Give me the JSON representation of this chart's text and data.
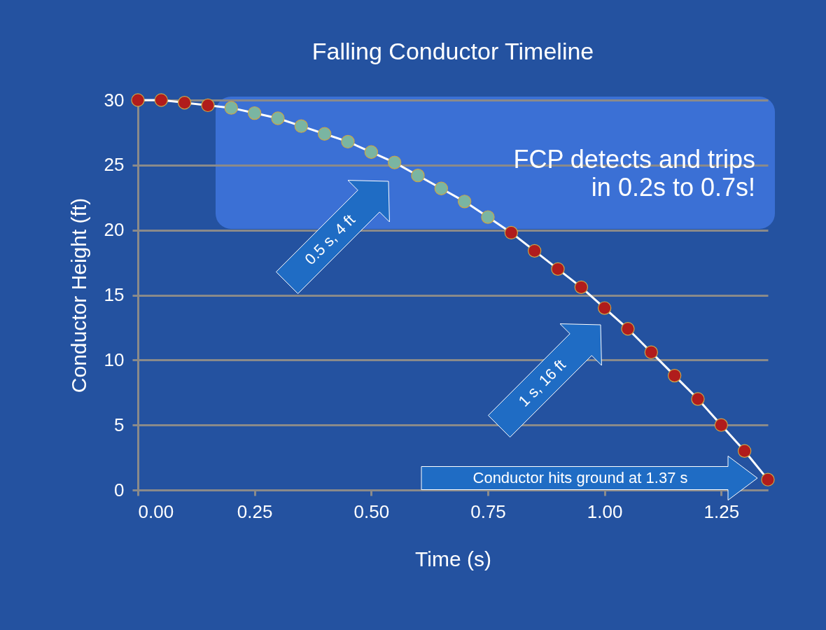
{
  "chart_data": {
    "type": "line",
    "title": "Falling Conductor Timeline",
    "xlabel": "Time (s)",
    "ylabel": "Conductor Height (ft)",
    "x": [
      0,
      0.05,
      0.1,
      0.15,
      0.2,
      0.25,
      0.3,
      0.35,
      0.4,
      0.45,
      0.5,
      0.55,
      0.6,
      0.65,
      0.7,
      0.75,
      0.8,
      0.85,
      0.9,
      0.95,
      1.0,
      1.05,
      1.1,
      1.15,
      1.2,
      1.25,
      1.3,
      1.35
    ],
    "series": [
      {
        "color": "#ffffff",
        "values": [
          30,
          30,
          29.8,
          29.6,
          29.4,
          29,
          28.6,
          28,
          27.4,
          26.8,
          26,
          25.2,
          24.2,
          23.2,
          22.2,
          21,
          19.8,
          18.4,
          17,
          15.6,
          14,
          12.4,
          10.6,
          8.8,
          7,
          5,
          3,
          0.8
        ],
        "colors": [
          "#b01c1c",
          "#b01c1c",
          "#b01c1c",
          "#b01c1c",
          "#7ab5a2",
          "#7ab5a2",
          "#7ab5a2",
          "#7ab5a2",
          "#7ab5a2",
          "#7ab5a2",
          "#7ab5a2",
          "#7ab5a2",
          "#7ab5a2",
          "#7ab5a2",
          "#7ab5a2",
          "#7ab5a2",
          "#b01c1c",
          "#b01c1c",
          "#b01c1c",
          "#b01c1c",
          "#b01c1c",
          "#b01c1c",
          "#b01c1c",
          "#b01c1c",
          "#b01c1c",
          "#b01c1c",
          "#b01c1c",
          "#b01c1c"
        ]
      }
    ],
    "xlim": [
      0,
      1.35
    ],
    "xticks": [
      {
        "value": 0,
        "label": "0.00"
      },
      0.25,
      {
        "value": 0.5,
        "label": "0.50"
      },
      0.75,
      {
        "value": 1,
        "label": "1.00"
      },
      1.25
    ],
    "ylim": [
      0,
      30
    ],
    "yticks": [
      0,
      5,
      10,
      15,
      20,
      25,
      30
    ],
    "grid": "y",
    "marker": "circle",
    "line_style": "solid",
    "annotations": [
      "FCP detects and trips\nin 0.2s to 0.7s!",
      "0.5 s, 4 ft",
      "1 s, 16 ft",
      "Conductor hits ground at 1.37 s"
    ]
  }
}
